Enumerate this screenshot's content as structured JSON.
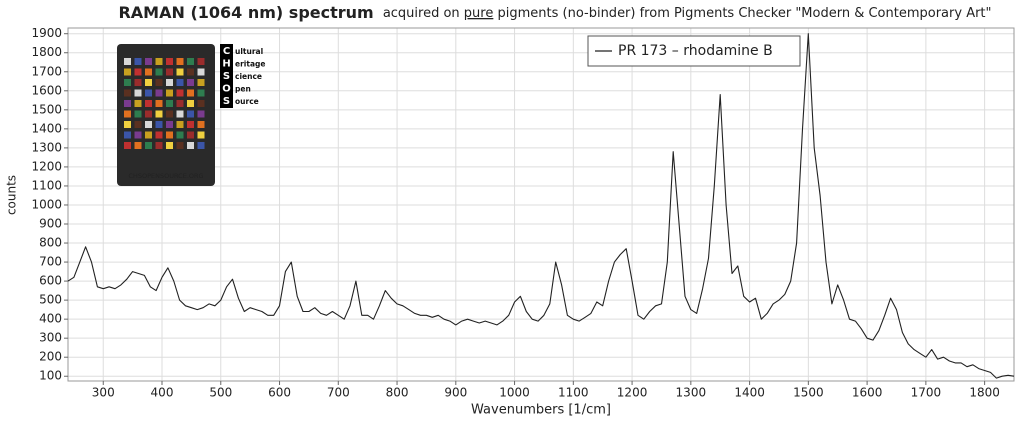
{
  "chart_data": {
    "type": "line",
    "title": "RAMAN (1064 nm) spectrum",
    "subtitle_parts": [
      "acquired on ",
      "pure",
      " pigments (no-binder) from Pigments Checker \"Modern & Contemporary Art\""
    ],
    "xlabel": "Wavenumbers [1/cm]",
    "ylabel": "counts",
    "logo": {
      "letters": [
        "C",
        "H",
        "S",
        "O",
        "S"
      ],
      "words": [
        "ultural",
        "eritage",
        "cience",
        "pen",
        "ource"
      ],
      "url": "CHSOPENSOURCE.ORG"
    },
    "xlim": [
      240,
      1850
    ],
    "ylim": [
      75,
      1930
    ],
    "xticks": [
      300,
      400,
      500,
      600,
      700,
      800,
      900,
      1000,
      1100,
      1200,
      1300,
      1400,
      1500,
      1600,
      1700,
      1800
    ],
    "yticks": [
      100,
      200,
      300,
      400,
      500,
      600,
      700,
      800,
      900,
      1000,
      1100,
      1200,
      1300,
      1400,
      1500,
      1600,
      1700,
      1800,
      1900
    ],
    "grid": true,
    "legend_position": "upper right",
    "x": [
      240,
      250,
      260,
      270,
      280,
      290,
      300,
      310,
      320,
      330,
      340,
      350,
      360,
      370,
      380,
      390,
      400,
      410,
      420,
      430,
      440,
      450,
      460,
      470,
      480,
      490,
      500,
      510,
      520,
      530,
      540,
      550,
      560,
      570,
      580,
      590,
      600,
      610,
      620,
      630,
      640,
      650,
      660,
      670,
      680,
      690,
      700,
      710,
      720,
      730,
      740,
      750,
      760,
      770,
      780,
      790,
      800,
      810,
      820,
      830,
      840,
      850,
      860,
      870,
      880,
      890,
      900,
      910,
      920,
      930,
      940,
      950,
      960,
      970,
      980,
      990,
      1000,
      1010,
      1020,
      1030,
      1040,
      1050,
      1060,
      1070,
      1080,
      1090,
      1100,
      1110,
      1120,
      1130,
      1140,
      1150,
      1160,
      1170,
      1180,
      1190,
      1200,
      1210,
      1220,
      1230,
      1240,
      1250,
      1260,
      1270,
      1280,
      1290,
      1300,
      1310,
      1320,
      1330,
      1340,
      1350,
      1360,
      1370,
      1380,
      1390,
      1400,
      1410,
      1420,
      1430,
      1440,
      1450,
      1460,
      1470,
      1480,
      1490,
      1500,
      1510,
      1520,
      1530,
      1540,
      1550,
      1560,
      1570,
      1580,
      1590,
      1600,
      1610,
      1620,
      1630,
      1640,
      1650,
      1660,
      1670,
      1680,
      1690,
      1700,
      1710,
      1720,
      1730,
      1740,
      1750,
      1760,
      1770,
      1780,
      1790,
      1800,
      1810,
      1820,
      1830,
      1840,
      1850
    ],
    "series": [
      {
        "name": "PR 173 – rhodamine B",
        "color": "#222222",
        "values": [
          600,
          620,
          700,
          780,
          700,
          570,
          560,
          570,
          560,
          580,
          610,
          650,
          640,
          630,
          570,
          550,
          620,
          670,
          600,
          500,
          470,
          460,
          450,
          460,
          480,
          470,
          500,
          570,
          610,
          510,
          440,
          460,
          450,
          440,
          420,
          420,
          470,
          650,
          700,
          520,
          440,
          440,
          460,
          430,
          420,
          440,
          420,
          400,
          470,
          600,
          420,
          420,
          400,
          470,
          550,
          510,
          480,
          470,
          450,
          430,
          420,
          420,
          410,
          420,
          400,
          390,
          370,
          390,
          400,
          390,
          380,
          390,
          380,
          370,
          390,
          420,
          490,
          520,
          440,
          400,
          390,
          420,
          480,
          700,
          580,
          420,
          400,
          390,
          410,
          430,
          490,
          470,
          600,
          700,
          740,
          770,
          600,
          420,
          400,
          440,
          470,
          480,
          700,
          1280,
          900,
          520,
          450,
          430,
          560,
          720,
          1100,
          1580,
          1000,
          640,
          680,
          520,
          490,
          510,
          400,
          430,
          480,
          500,
          530,
          600,
          800,
          1400,
          1900,
          1300,
          1050,
          700,
          480,
          580,
          500,
          400,
          390,
          350,
          300,
          290,
          340,
          420,
          510,
          450,
          330,
          270,
          240,
          220,
          200,
          240,
          190,
          200,
          180,
          170,
          170,
          150,
          160,
          140,
          130,
          120,
          90,
          100,
          105,
          100
        ]
      }
    ]
  }
}
